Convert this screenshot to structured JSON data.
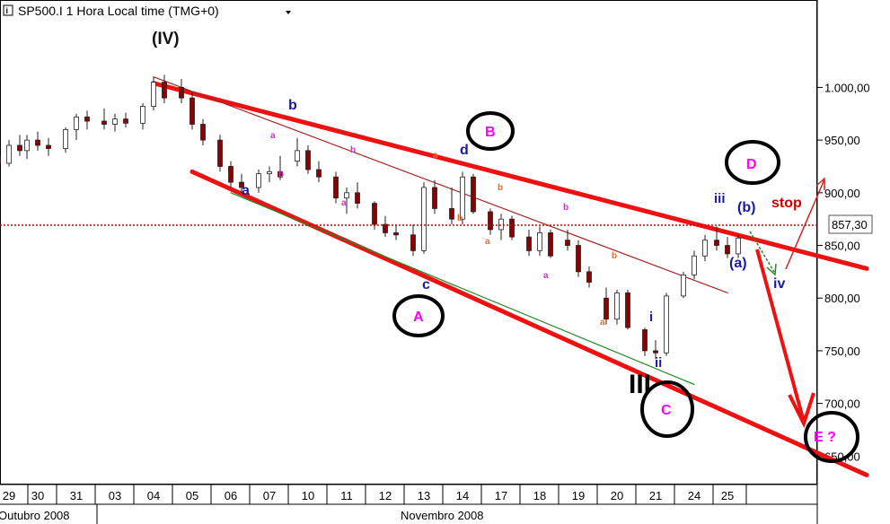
{
  "header": {
    "title": "SP500.I 1 Hora Local time (TMG+0)",
    "dropdown_icon": "chevron-down-icon",
    "info_icon": "info-icon"
  },
  "price_marker": {
    "label": "857,30",
    "value": 857.3,
    "color": "#cc0000"
  },
  "chart_data": {
    "type": "candlestick",
    "title": "SP500.I 1 Hora Local time (TMG+0)",
    "y_ticks": [
      {
        "value": 650,
        "label": "650,00"
      },
      {
        "value": 700,
        "label": "700,00"
      },
      {
        "value": 750,
        "label": "750,00"
      },
      {
        "value": 800,
        "label": "800,00"
      },
      {
        "value": 850,
        "label": "850,00"
      },
      {
        "value": 900,
        "label": "900,00"
      },
      {
        "value": 950,
        "label": "950,00"
      },
      {
        "value": 1000,
        "label": "1.000,00"
      }
    ],
    "ylim": [
      623,
      1083
    ],
    "x_ticks": [
      "29",
      "30",
      "31",
      "03",
      "04",
      "05",
      "06",
      "07",
      "10",
      "11",
      "12",
      "13",
      "14",
      "17",
      "18",
      "19",
      "20",
      "21",
      "24",
      "25"
    ],
    "x_month_labels": [
      "Outubro 2008",
      "Novembro 2008"
    ],
    "candle_color_up": "#ffffff",
    "candle_color_down": "#8b0000",
    "series": [
      {
        "day": "29",
        "ohlc": [
          [
            935,
            945,
            920,
            928
          ],
          [
            928,
            950,
            925,
            945
          ],
          [
            945,
            955,
            935,
            940
          ]
        ]
      },
      {
        "day": "30",
        "ohlc": [
          [
            940,
            955,
            932,
            950
          ],
          [
            950,
            958,
            940,
            945
          ],
          [
            945,
            952,
            935,
            942
          ]
        ]
      },
      {
        "day": "31",
        "ohlc": [
          [
            942,
            962,
            938,
            960
          ],
          [
            960,
            975,
            950,
            972
          ],
          [
            972,
            978,
            960,
            968
          ]
        ]
      },
      {
        "day": "03",
        "ohlc": [
          [
            968,
            980,
            960,
            965
          ],
          [
            965,
            975,
            958,
            970
          ],
          [
            970,
            976,
            962,
            966
          ]
        ]
      },
      {
        "day": "04",
        "ohlc": [
          [
            966,
            985,
            960,
            982
          ],
          [
            982,
            1010,
            978,
            1005
          ],
          [
            1005,
            1012,
            985,
            990
          ]
        ]
      },
      {
        "day": "05",
        "ohlc": [
          [
            1000,
            1008,
            985,
            990
          ],
          [
            990,
            995,
            960,
            965
          ],
          [
            965,
            970,
            945,
            950
          ]
        ]
      },
      {
        "day": "06",
        "ohlc": [
          [
            950,
            955,
            920,
            925
          ],
          [
            925,
            930,
            905,
            910
          ],
          [
            910,
            918,
            900,
            905
          ]
        ]
      },
      {
        "day": "07",
        "ohlc": [
          [
            905,
            922,
            900,
            918
          ],
          [
            918,
            925,
            910,
            920
          ],
          [
            920,
            935,
            912,
            915
          ]
        ]
      },
      {
        "day": "10",
        "ohlc": [
          [
            930,
            952,
            925,
            940
          ],
          [
            940,
            945,
            918,
            922
          ],
          [
            922,
            930,
            910,
            915
          ]
        ]
      },
      {
        "day": "11",
        "ohlc": [
          [
            915,
            920,
            890,
            895
          ],
          [
            895,
            905,
            880,
            900
          ],
          [
            900,
            910,
            885,
            890
          ]
        ]
      },
      {
        "day": "12",
        "ohlc": [
          [
            890,
            892,
            865,
            870
          ],
          [
            870,
            878,
            858,
            862
          ],
          [
            862,
            870,
            855,
            860
          ]
        ]
      },
      {
        "day": "13",
        "ohlc": [
          [
            860,
            870,
            840,
            845
          ],
          [
            845,
            910,
            842,
            905
          ],
          [
            905,
            912,
            880,
            885
          ]
        ]
      },
      {
        "day": "14",
        "ohlc": [
          [
            885,
            905,
            870,
            875
          ],
          [
            875,
            920,
            870,
            915
          ],
          [
            915,
            918,
            880,
            882
          ]
        ]
      },
      {
        "day": "17",
        "ohlc": [
          [
            882,
            885,
            860,
            865
          ],
          [
            865,
            880,
            855,
            875
          ],
          [
            875,
            878,
            855,
            858
          ]
        ]
      },
      {
        "day": "18",
        "ohlc": [
          [
            858,
            865,
            840,
            845
          ],
          [
            845,
            868,
            840,
            862
          ],
          [
            862,
            865,
            838,
            840
          ]
        ]
      },
      {
        "day": "19",
        "ohlc": [
          [
            855,
            865,
            845,
            850
          ],
          [
            850,
            855,
            820,
            825
          ],
          [
            825,
            830,
            810,
            815
          ]
        ]
      },
      {
        "day": "20",
        "ohlc": [
          [
            800,
            810,
            775,
            780
          ],
          [
            780,
            808,
            775,
            805
          ],
          [
            805,
            808,
            770,
            772
          ]
        ]
      },
      {
        "day": "21",
        "ohlc": [
          [
            770,
            772,
            745,
            750
          ],
          [
            750,
            760,
            742,
            748
          ],
          [
            748,
            805,
            745,
            802
          ]
        ]
      },
      {
        "day": "24",
        "ohlc": [
          [
            802,
            825,
            800,
            822
          ],
          [
            822,
            845,
            818,
            840
          ],
          [
            840,
            860,
            835,
            855
          ]
        ]
      },
      {
        "day": "25",
        "ohlc": [
          [
            855,
            868,
            845,
            850
          ],
          [
            850,
            858,
            838,
            842
          ],
          [
            842,
            860,
            838,
            857
          ]
        ]
      }
    ],
    "trendlines": [
      {
        "name": "upper-red-channel",
        "color": "#ee1111",
        "from": {
          "day": "04",
          "value": 1004
        },
        "to": {
          "day": "E",
          "value": 828
        }
      },
      {
        "name": "lower-red-channel",
        "color": "#ee1111",
        "from": {
          "day": "05",
          "value": 920
        },
        "to": {
          "day": "E",
          "value": 632
        }
      },
      {
        "name": "thin-red-channel",
        "color": "#aa2222",
        "from": {
          "day": "04",
          "value": 1010
        },
        "to": {
          "day": "25",
          "value": 805
        }
      },
      {
        "name": "green-channel",
        "color": "#228822",
        "from": {
          "day": "06",
          "value": 900
        },
        "to": {
          "day": "24",
          "value": 718
        }
      }
    ],
    "annotations": [
      {
        "text": "(IV)",
        "color": "#111111"
      },
      {
        "text": "B",
        "color": "#ff00ff",
        "circled": true
      },
      {
        "text": "A",
        "color": "#ff00ff",
        "circled": true
      },
      {
        "text": "C",
        "color": "#ff00ff",
        "circled": true
      },
      {
        "text": "D",
        "color": "#ff00ff",
        "circled": true
      },
      {
        "text": "E ?",
        "color": "#ff00ff",
        "circled": true
      },
      {
        "text": "III",
        "color": "#000000"
      },
      {
        "text": "a",
        "color": "#1a1aa0"
      },
      {
        "text": "b",
        "color": "#1a1aa0"
      },
      {
        "text": "c",
        "color": "#1a1aa0"
      },
      {
        "text": "d",
        "color": "#1a1aa0"
      },
      {
        "text": "i",
        "color": "#1a1aa0"
      },
      {
        "text": "ii",
        "color": "#1a1aa0"
      },
      {
        "text": "iii",
        "color": "#1a1aa0"
      },
      {
        "text": "iv",
        "color": "#1a1aa0"
      },
      {
        "text": "(a)",
        "color": "#1a1aa0"
      },
      {
        "text": "(b)",
        "color": "#1a1aa0"
      },
      {
        "text": "stop",
        "color": "#cc0000"
      },
      {
        "text": "a",
        "color": "#cc33cc"
      },
      {
        "text": "b",
        "color": "#cc33cc"
      },
      {
        "text": "a",
        "color": "#e07030"
      },
      {
        "text": "b",
        "color": "#e07030"
      }
    ]
  }
}
